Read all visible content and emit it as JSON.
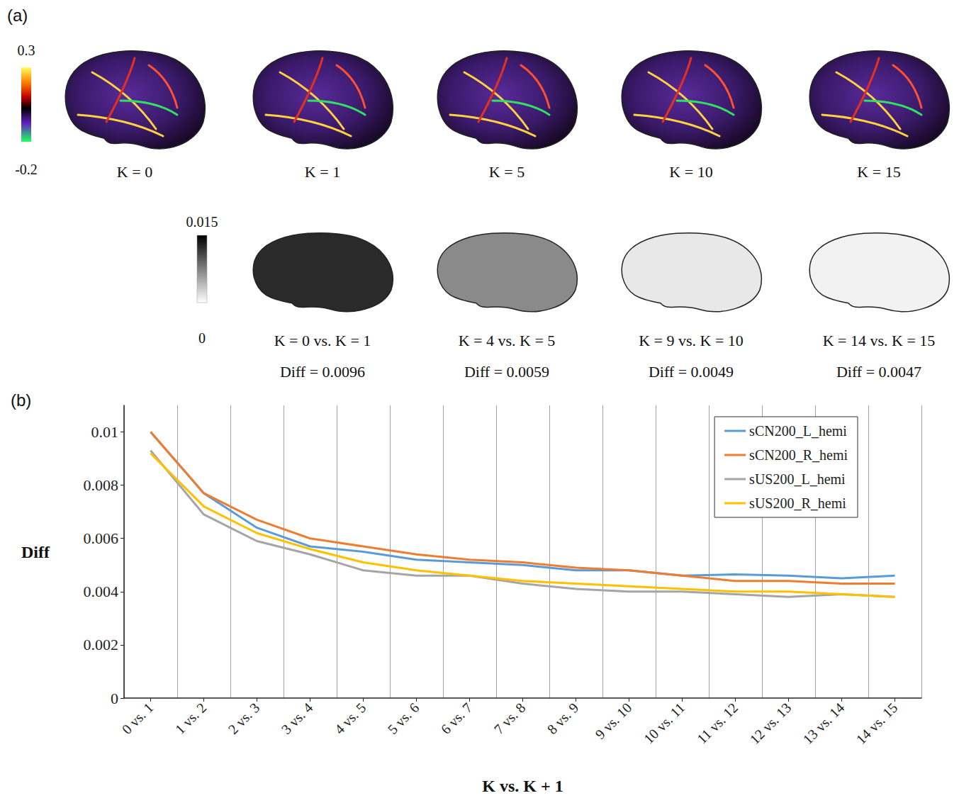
{
  "panel_labels": [
    "(a)",
    "(b)"
  ],
  "panel_a": {
    "colorbar_ticks": [
      -0.2,
      0.3
    ],
    "top_row": [
      "K = 0",
      "K = 1",
      "K = 5",
      "K = 10",
      "K = 15"
    ],
    "diff_colorbar_ticks": [
      0,
      0.015
    ],
    "bottom_row": [
      {
        "label": "K = 0 vs. K = 1",
        "diff": "Diff = 0.0096"
      },
      {
        "label": "K = 4 vs. K = 5",
        "diff": "Diff = 0.0059"
      },
      {
        "label": "K = 9 vs. K = 10",
        "diff": "Diff = 0.0049"
      },
      {
        "label": "K = 14 vs. K = 15",
        "diff": "Diff = 0.0047"
      }
    ]
  },
  "chart_data": {
    "type": "line",
    "x_label": "K vs. K + 1",
    "y_label": "Diff",
    "categories": [
      "0 vs. 1",
      "1 vs. 2",
      "2 vs. 3",
      "3 vs. 4",
      "4 vs. 5",
      "5 vs. 6",
      "6 vs. 7",
      "7 vs. 8",
      "8 vs. 9",
      "9 vs. 10",
      "10 vs. 11",
      "11 vs. 12",
      "12 vs. 13",
      "13 vs. 14",
      "14 vs. 15"
    ],
    "series": [
      {
        "name": "sCN200_L_hemi",
        "color": "#5b9bd5",
        "values": [
          0.01,
          0.0077,
          0.0064,
          0.0057,
          0.0055,
          0.0052,
          0.0051,
          0.005,
          0.0048,
          0.0048,
          0.0046,
          0.00465,
          0.0046,
          0.0045,
          0.0046
        ]
      },
      {
        "name": "sCN200_R_hemi",
        "color": "#ed7d31",
        "values": [
          0.01,
          0.0077,
          0.0067,
          0.006,
          0.0057,
          0.0054,
          0.0052,
          0.0051,
          0.0049,
          0.0048,
          0.0046,
          0.0044,
          0.0044,
          0.0043,
          0.0043
        ]
      },
      {
        "name": "sUS200_L_hemi",
        "color": "#a5a5a5",
        "values": [
          0.0093,
          0.0069,
          0.0059,
          0.0054,
          0.0048,
          0.0046,
          0.0046,
          0.0043,
          0.0041,
          0.004,
          0.004,
          0.0039,
          0.0038,
          0.0039,
          0.0038
        ]
      },
      {
        "name": "sUS200_R_hemi",
        "color": "#ffc000",
        "values": [
          0.0092,
          0.0072,
          0.0062,
          0.0056,
          0.0051,
          0.0048,
          0.0046,
          0.0044,
          0.0043,
          0.0042,
          0.0041,
          0.004,
          0.004,
          0.0039,
          0.0038
        ]
      }
    ],
    "ylim": [
      0,
      0.011
    ],
    "yticks": [
      0,
      0.002,
      0.004,
      0.006,
      0.008,
      0.01
    ],
    "grid": true,
    "legend": "upper right",
    "marker": "none",
    "line_style": "solid"
  }
}
